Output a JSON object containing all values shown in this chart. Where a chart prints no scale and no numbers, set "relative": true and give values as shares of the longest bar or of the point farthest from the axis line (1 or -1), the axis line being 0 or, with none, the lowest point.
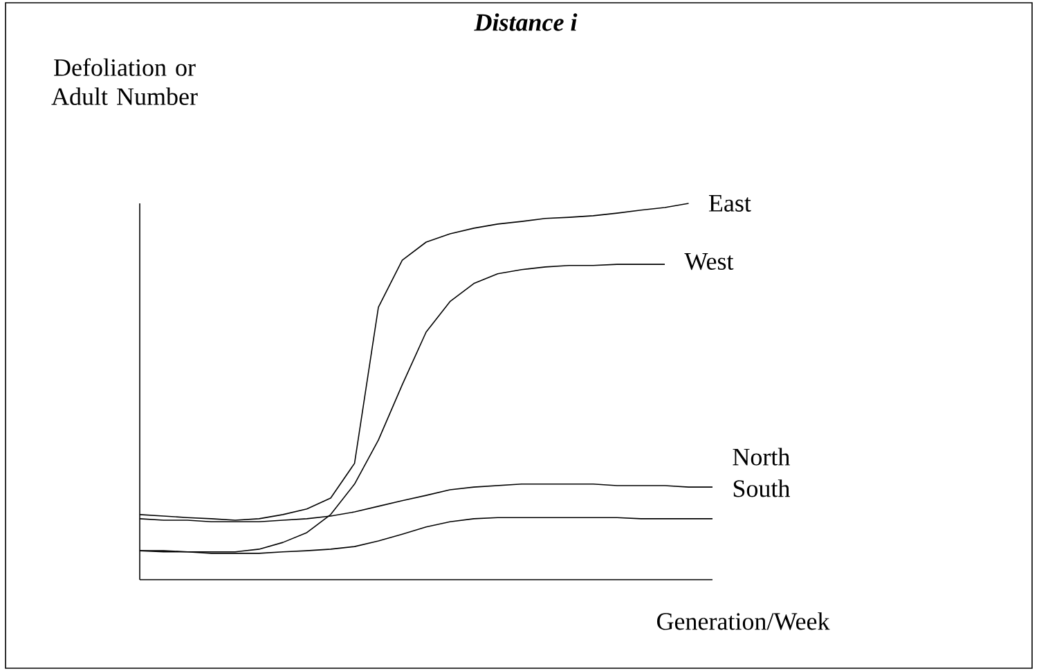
{
  "chart_data": {
    "type": "line",
    "title": "Distance i",
    "xlabel": "Generation/Week",
    "ylabel": "Defoliation or Adult Number",
    "relative": true,
    "categories": [
      null,
      null,
      null,
      null,
      null,
      null,
      null,
      null,
      null,
      null,
      null,
      null,
      null,
      null,
      null,
      null,
      null,
      null,
      null,
      null,
      null,
      null,
      null,
      null,
      null
    ],
    "series": [
      {
        "name": "East",
        "color": "#000000",
        "values": [
          0.173,
          0.169,
          0.165,
          0.162,
          0.158,
          0.162,
          0.173,
          0.188,
          0.217,
          0.309,
          0.724,
          0.849,
          0.897,
          0.919,
          0.934,
          0.945,
          0.952,
          0.96,
          0.963,
          0.967,
          0.974,
          0.982,
          0.989,
          1.0,
          null
        ]
      },
      {
        "name": "West",
        "color": "#000000",
        "values": [
          0.077,
          0.077,
          0.074,
          0.074,
          0.074,
          0.081,
          0.099,
          0.125,
          0.173,
          0.254,
          0.371,
          0.518,
          0.658,
          0.739,
          0.787,
          0.813,
          0.824,
          0.831,
          0.835,
          0.835,
          0.838,
          0.838,
          0.838,
          null,
          null
        ]
      },
      {
        "name": "North",
        "color": "#000000",
        "values": [
          0.162,
          0.158,
          0.158,
          0.154,
          0.154,
          0.154,
          0.158,
          0.162,
          0.169,
          0.18,
          0.195,
          0.21,
          0.224,
          0.239,
          0.246,
          0.25,
          0.254,
          0.254,
          0.254,
          0.254,
          0.25,
          0.25,
          0.25,
          0.246,
          0.246
        ]
      },
      {
        "name": "South",
        "color": "#000000",
        "values": [
          0.077,
          0.074,
          0.074,
          0.07,
          0.07,
          0.07,
          0.074,
          0.077,
          0.081,
          0.088,
          0.103,
          0.121,
          0.14,
          0.154,
          0.162,
          0.165,
          0.165,
          0.165,
          0.165,
          0.165,
          0.165,
          0.162,
          0.162,
          0.162,
          0.162
        ]
      }
    ]
  }
}
